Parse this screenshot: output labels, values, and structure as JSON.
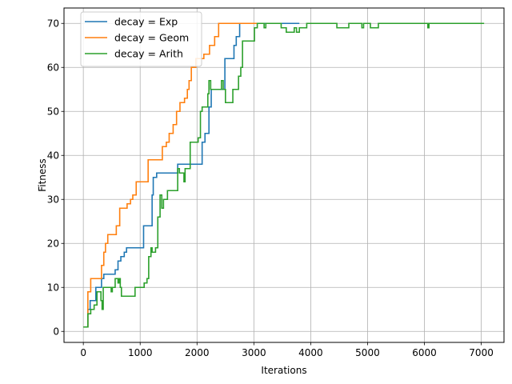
{
  "chart_data": {
    "type": "line",
    "title": "",
    "xlabel": "Iterations",
    "ylabel": "Fitness",
    "xlim": [
      -340,
      7400
    ],
    "ylim": [
      -2.5,
      73.5
    ],
    "xticks": [
      0,
      1000,
      2000,
      3000,
      4000,
      5000,
      6000,
      7000
    ],
    "yticks": [
      0,
      10,
      20,
      30,
      40,
      50,
      60,
      70
    ],
    "grid": true,
    "legend": "top-left",
    "step": true,
    "series": [
      {
        "name": "decay = Exp",
        "color": "#1f77b4",
        "points": [
          [
            0,
            1
          ],
          [
            70,
            1
          ],
          [
            80,
            5
          ],
          [
            100,
            5
          ],
          [
            120,
            7
          ],
          [
            200,
            7
          ],
          [
            220,
            10
          ],
          [
            300,
            10
          ],
          [
            320,
            12
          ],
          [
            350,
            12
          ],
          [
            360,
            13
          ],
          [
            550,
            13
          ],
          [
            560,
            14
          ],
          [
            600,
            14
          ],
          [
            610,
            16
          ],
          [
            650,
            16
          ],
          [
            660,
            17
          ],
          [
            700,
            17
          ],
          [
            720,
            18
          ],
          [
            740,
            18
          ],
          [
            760,
            19
          ],
          [
            1050,
            19
          ],
          [
            1060,
            24
          ],
          [
            1200,
            24
          ],
          [
            1210,
            31
          ],
          [
            1220,
            31
          ],
          [
            1230,
            35
          ],
          [
            1280,
            35
          ],
          [
            1290,
            36
          ],
          [
            1650,
            36
          ],
          [
            1660,
            38
          ],
          [
            2080,
            38
          ],
          [
            2090,
            43
          ],
          [
            2130,
            43
          ],
          [
            2140,
            45
          ],
          [
            2200,
            45
          ],
          [
            2210,
            51
          ],
          [
            2240,
            51
          ],
          [
            2250,
            55
          ],
          [
            2480,
            55
          ],
          [
            2490,
            62
          ],
          [
            2640,
            62
          ],
          [
            2650,
            65
          ],
          [
            2680,
            65
          ],
          [
            2690,
            67
          ],
          [
            2740,
            67
          ],
          [
            2750,
            70
          ],
          [
            3800,
            70
          ]
        ]
      },
      {
        "name": "decay = Geom",
        "color": "#ff7f0e",
        "points": [
          [
            0,
            1
          ],
          [
            70,
            1
          ],
          [
            80,
            9
          ],
          [
            120,
            9
          ],
          [
            130,
            12
          ],
          [
            310,
            12
          ],
          [
            320,
            15
          ],
          [
            350,
            15
          ],
          [
            360,
            18
          ],
          [
            380,
            18
          ],
          [
            390,
            20
          ],
          [
            420,
            20
          ],
          [
            430,
            22
          ],
          [
            570,
            22
          ],
          [
            580,
            24
          ],
          [
            630,
            24
          ],
          [
            640,
            28
          ],
          [
            760,
            28
          ],
          [
            770,
            29
          ],
          [
            820,
            29
          ],
          [
            830,
            30
          ],
          [
            860,
            30
          ],
          [
            870,
            31
          ],
          [
            920,
            31
          ],
          [
            930,
            34
          ],
          [
            1130,
            34
          ],
          [
            1140,
            39
          ],
          [
            1380,
            39
          ],
          [
            1390,
            42
          ],
          [
            1450,
            42
          ],
          [
            1460,
            43
          ],
          [
            1500,
            43
          ],
          [
            1510,
            45
          ],
          [
            1570,
            45
          ],
          [
            1580,
            47
          ],
          [
            1630,
            47
          ],
          [
            1640,
            50
          ],
          [
            1690,
            50
          ],
          [
            1700,
            52
          ],
          [
            1770,
            52
          ],
          [
            1780,
            53
          ],
          [
            1820,
            53
          ],
          [
            1830,
            55
          ],
          [
            1850,
            55
          ],
          [
            1860,
            57
          ],
          [
            1890,
            57
          ],
          [
            1900,
            60
          ],
          [
            1970,
            60
          ],
          [
            1980,
            62
          ],
          [
            2110,
            62
          ],
          [
            2120,
            63
          ],
          [
            2210,
            63
          ],
          [
            2220,
            65
          ],
          [
            2300,
            65
          ],
          [
            2310,
            67
          ],
          [
            2370,
            67
          ],
          [
            2380,
            70
          ],
          [
            3100,
            70
          ]
        ]
      },
      {
        "name": "decay = Arith",
        "color": "#2ca02c",
        "points": [
          [
            0,
            1
          ],
          [
            70,
            1
          ],
          [
            80,
            4
          ],
          [
            120,
            4
          ],
          [
            130,
            5
          ],
          [
            180,
            5
          ],
          [
            190,
            6
          ],
          [
            230,
            6
          ],
          [
            240,
            9
          ],
          [
            300,
            9
          ],
          [
            310,
            7
          ],
          [
            320,
            7
          ],
          [
            330,
            5
          ],
          [
            340,
            5
          ],
          [
            350,
            10
          ],
          [
            480,
            10
          ],
          [
            490,
            9
          ],
          [
            500,
            9
          ],
          [
            510,
            10
          ],
          [
            550,
            10
          ],
          [
            560,
            12
          ],
          [
            600,
            12
          ],
          [
            610,
            11
          ],
          [
            620,
            11
          ],
          [
            630,
            12
          ],
          [
            640,
            12
          ],
          [
            650,
            10
          ],
          [
            660,
            10
          ],
          [
            670,
            8
          ],
          [
            900,
            8
          ],
          [
            910,
            10
          ],
          [
            1060,
            10
          ],
          [
            1070,
            11
          ],
          [
            1110,
            11
          ],
          [
            1120,
            12
          ],
          [
            1140,
            12
          ],
          [
            1150,
            17
          ],
          [
            1180,
            17
          ],
          [
            1190,
            19
          ],
          [
            1200,
            19
          ],
          [
            1210,
            18
          ],
          [
            1260,
            18
          ],
          [
            1270,
            19
          ],
          [
            1300,
            19
          ],
          [
            1310,
            26
          ],
          [
            1340,
            26
          ],
          [
            1350,
            31
          ],
          [
            1370,
            31
          ],
          [
            1380,
            28
          ],
          [
            1400,
            28
          ],
          [
            1410,
            30
          ],
          [
            1470,
            30
          ],
          [
            1480,
            32
          ],
          [
            1650,
            32
          ],
          [
            1660,
            37
          ],
          [
            1680,
            37
          ],
          [
            1690,
            36
          ],
          [
            1760,
            36
          ],
          [
            1770,
            34
          ],
          [
            1780,
            34
          ],
          [
            1790,
            37
          ],
          [
            1870,
            37
          ],
          [
            1880,
            43
          ],
          [
            2010,
            43
          ],
          [
            2020,
            44
          ],
          [
            2050,
            44
          ],
          [
            2060,
            50
          ],
          [
            2080,
            50
          ],
          [
            2090,
            51
          ],
          [
            2180,
            51
          ],
          [
            2190,
            54
          ],
          [
            2200,
            54
          ],
          [
            2210,
            57
          ],
          [
            2230,
            57
          ],
          [
            2240,
            55
          ],
          [
            2420,
            55
          ],
          [
            2430,
            57
          ],
          [
            2450,
            57
          ],
          [
            2460,
            55
          ],
          [
            2490,
            55
          ],
          [
            2500,
            52
          ],
          [
            2620,
            52
          ],
          [
            2630,
            55
          ],
          [
            2720,
            55
          ],
          [
            2730,
            58
          ],
          [
            2760,
            58
          ],
          [
            2770,
            60
          ],
          [
            2790,
            60
          ],
          [
            2800,
            66
          ],
          [
            3000,
            66
          ],
          [
            3010,
            69
          ],
          [
            3050,
            69
          ],
          [
            3060,
            70
          ],
          [
            3170,
            70
          ],
          [
            3180,
            69
          ],
          [
            3200,
            69
          ],
          [
            3210,
            70
          ],
          [
            3470,
            70
          ],
          [
            3480,
            69
          ],
          [
            3560,
            69
          ],
          [
            3570,
            68
          ],
          [
            3700,
            68
          ],
          [
            3710,
            69
          ],
          [
            3740,
            69
          ],
          [
            3750,
            68
          ],
          [
            3790,
            68
          ],
          [
            3800,
            69
          ],
          [
            3920,
            69
          ],
          [
            3930,
            70
          ],
          [
            4450,
            70
          ],
          [
            4460,
            69
          ],
          [
            4660,
            69
          ],
          [
            4670,
            70
          ],
          [
            4890,
            70
          ],
          [
            4900,
            69
          ],
          [
            4920,
            69
          ],
          [
            4930,
            70
          ],
          [
            5040,
            70
          ],
          [
            5050,
            69
          ],
          [
            5180,
            69
          ],
          [
            5190,
            70
          ],
          [
            6050,
            70
          ],
          [
            6060,
            69
          ],
          [
            6070,
            69
          ],
          [
            6080,
            70
          ],
          [
            7050,
            70
          ]
        ]
      }
    ]
  }
}
